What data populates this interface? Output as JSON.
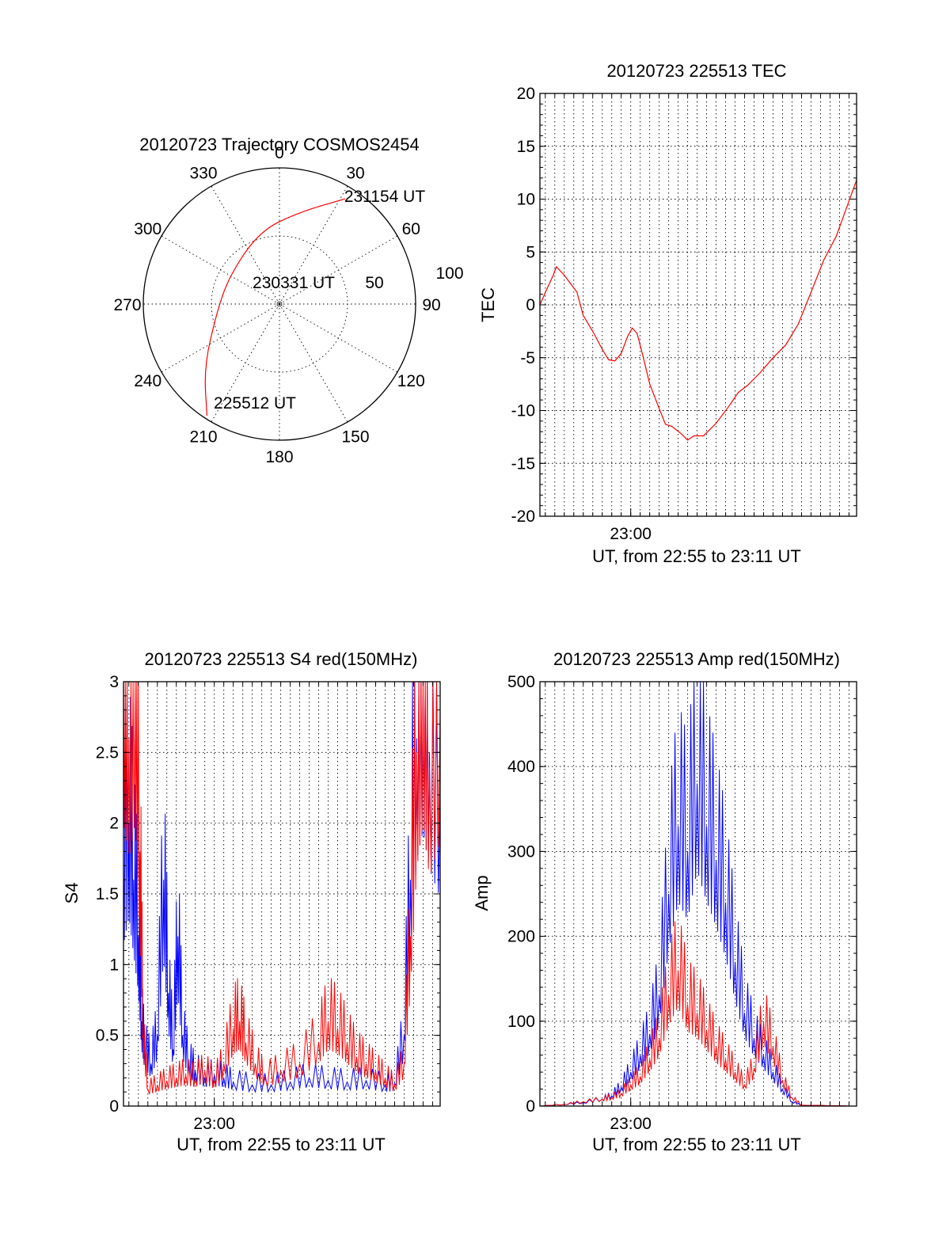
{
  "colors": {
    "red": "#ff0000",
    "blue": "#0000ff",
    "axis": "#000000"
  },
  "chart_data": [
    {
      "id": "trajectory",
      "type": "polar",
      "title": "20120723 Trajectory COSMOS2454",
      "azimuth_labels": [
        "0",
        "30",
        "60",
        "90",
        "120",
        "150",
        "180",
        "210",
        "240",
        "270",
        "300",
        "330"
      ],
      "elevation_ring_labels": [
        "50",
        "100"
      ],
      "annotations": {
        "start": "225512 UT",
        "middle": "230331 UT",
        "end": "231154 UT"
      },
      "trajectory": [
        {
          "az": 213,
          "zenith": 88
        },
        {
          "az": 230,
          "zenith": 65
        },
        {
          "az": 262,
          "zenith": 42
        },
        {
          "az": 300,
          "zenith": 38
        },
        {
          "az": 345,
          "zenith": 50
        },
        {
          "az": 12,
          "zenith": 62
        },
        {
          "az": 32,
          "zenith": 82
        }
      ]
    },
    {
      "id": "tec",
      "type": "line",
      "title": "20120723 225513 TEC",
      "xlabel": "UT, from 22:55 to 23:11 UT",
      "ylabel": "TEC",
      "x_tick_label": "23:00",
      "xlim": [
        "22:55:13",
        "23:11:54"
      ],
      "ylim": [
        -20,
        20
      ],
      "yticks": [
        "20",
        "15",
        "10",
        "5",
        "0",
        "-5",
        "-10",
        "-15",
        "-20"
      ],
      "series": [
        {
          "color": "red",
          "points": [
            [
              "22:55:13",
              0
            ],
            [
              "22:55:35",
              1.5
            ],
            [
              "22:55:55",
              2.8
            ],
            [
              "22:56:05",
              3.6
            ],
            [
              "22:56:30",
              2.8
            ],
            [
              "22:57:10",
              1.2
            ],
            [
              "22:57:30",
              -1
            ],
            [
              "22:58:00",
              -2.5
            ],
            [
              "22:58:30",
              -4.2
            ],
            [
              "22:58:50",
              -5.2
            ],
            [
              "22:59:10",
              -5.3
            ],
            [
              "22:59:30",
              -4.6
            ],
            [
              "22:59:50",
              -3
            ],
            [
              "23:00:05",
              -2.2
            ],
            [
              "23:00:20",
              -2.7
            ],
            [
              "23:00:40",
              -5
            ],
            [
              "23:01:00",
              -7.5
            ],
            [
              "23:01:30",
              -9.8
            ],
            [
              "23:01:50",
              -11.3
            ],
            [
              "23:02:10",
              -11.5
            ],
            [
              "23:02:40",
              -12.2
            ],
            [
              "23:03:00",
              -12.8
            ],
            [
              "23:03:20",
              -12.4
            ],
            [
              "23:03:50",
              -12.4
            ],
            [
              "23:04:30",
              -11.2
            ],
            [
              "23:05:10",
              -9.6
            ],
            [
              "23:05:40",
              -8.3
            ],
            [
              "23:06:10",
              -7.6
            ],
            [
              "23:06:50",
              -6.4
            ],
            [
              "23:07:30",
              -5
            ],
            [
              "23:08:10",
              -3.8
            ],
            [
              "23:08:50",
              -1.8
            ],
            [
              "23:09:30",
              1.2
            ],
            [
              "23:10:10",
              4.2
            ],
            [
              "23:10:50",
              6.5
            ],
            [
              "23:11:20",
              9
            ],
            [
              "23:11:54",
              11.8
            ]
          ]
        }
      ]
    },
    {
      "id": "s4",
      "type": "line",
      "title": "20120723 225513 S4 red(150MHz)",
      "xlabel": "UT, from 22:55 to 23:11 UT",
      "ylabel": "S4",
      "x_tick_label": "23:00",
      "xlim": [
        "22:55:13",
        "23:11:54"
      ],
      "ylim": [
        0,
        3
      ],
      "yticks": [
        "3",
        "2.5",
        "2",
        "1.5",
        "1",
        "0.5",
        "0"
      ],
      "series": [
        {
          "color": "blue",
          "points": [
            [
              "22:55:13",
              1.7
            ],
            [
              "22:55:30",
              2.0
            ],
            [
              "22:55:45",
              1.6
            ],
            [
              "22:56:00",
              1.2
            ],
            [
              "22:56:10",
              0.6
            ],
            [
              "22:56:20",
              0.4
            ],
            [
              "22:56:40",
              0.3
            ],
            [
              "22:57:00",
              0.5
            ],
            [
              "22:57:20",
              1.6
            ],
            [
              "22:57:35",
              0.8
            ],
            [
              "22:57:50",
              0.4
            ],
            [
              "22:58:05",
              1.2
            ],
            [
              "22:58:20",
              0.5
            ],
            [
              "22:58:40",
              0.3
            ],
            [
              "22:59:00",
              0.25
            ],
            [
              "22:59:30",
              0.2
            ],
            [
              "23:00:00",
              0.22
            ],
            [
              "23:00:30",
              0.2
            ],
            [
              "23:01:00",
              0.17
            ],
            [
              "23:02:00",
              0.15
            ],
            [
              "23:03:00",
              0.15
            ],
            [
              "23:04:00",
              0.17
            ],
            [
              "23:05:00",
              0.2
            ],
            [
              "23:06:00",
              0.18
            ],
            [
              "23:07:00",
              0.17
            ],
            [
              "23:08:00",
              0.18
            ],
            [
              "23:09:00",
              0.15
            ],
            [
              "23:09:30",
              0.16
            ],
            [
              "23:10:00",
              0.5
            ],
            [
              "23:10:20",
              1.6
            ],
            [
              "23:10:40",
              2.6
            ],
            [
              "23:11:00",
              2.9
            ],
            [
              "23:11:20",
              2.5
            ],
            [
              "23:11:54",
              2.2
            ]
          ]
        },
        {
          "color": "red",
          "points": [
            [
              "22:55:13",
              3.0
            ],
            [
              "22:55:30",
              2.6
            ],
            [
              "22:55:50",
              3.0
            ],
            [
              "22:56:05",
              1.8
            ],
            [
              "22:56:15",
              0.5
            ],
            [
              "22:56:30",
              0.12
            ],
            [
              "22:57:00",
              0.15
            ],
            [
              "22:57:30",
              0.18
            ],
            [
              "22:58:00",
              0.2
            ],
            [
              "22:58:30",
              0.22
            ],
            [
              "22:59:00",
              0.2
            ],
            [
              "22:59:30",
              0.25
            ],
            [
              "23:00:00",
              0.18
            ],
            [
              "23:00:30",
              0.3
            ],
            [
              "23:01:00",
              0.55
            ],
            [
              "23:01:20",
              0.6
            ],
            [
              "23:01:40",
              0.45
            ],
            [
              "23:02:10",
              0.3
            ],
            [
              "23:02:40",
              0.2
            ],
            [
              "23:03:30",
              0.25
            ],
            [
              "23:04:30",
              0.3
            ],
            [
              "23:05:30",
              0.45
            ],
            [
              "23:06:00",
              0.6
            ],
            [
              "23:06:30",
              0.55
            ],
            [
              "23:07:00",
              0.45
            ],
            [
              "23:07:30",
              0.35
            ],
            [
              "23:08:00",
              0.3
            ],
            [
              "23:08:30",
              0.25
            ],
            [
              "23:09:00",
              0.2
            ],
            [
              "23:09:30",
              0.15
            ],
            [
              "23:10:00",
              0.3
            ],
            [
              "23:10:20",
              1.2
            ],
            [
              "23:10:40",
              2.5
            ],
            [
              "23:11:00",
              3.0
            ],
            [
              "23:11:20",
              2.4
            ],
            [
              "23:11:54",
              2.8
            ]
          ]
        }
      ]
    },
    {
      "id": "amp",
      "type": "line",
      "title": "20120723 225513 Amp red(150MHz)",
      "xlabel": "UT, from 22:55 to 23:11 UT",
      "ylabel": "Amp",
      "x_tick_label": "23:00",
      "xlim": [
        "22:55:13",
        "23:11:54"
      ],
      "ylim": [
        0,
        500
      ],
      "yticks": [
        "500",
        "400",
        "300",
        "200",
        "100",
        "0"
      ],
      "series": [
        {
          "color": "blue",
          "points": [
            [
              "22:55:13",
              0
            ],
            [
              "22:56:30",
              2
            ],
            [
              "22:57:30",
              4
            ],
            [
              "22:58:30",
              8
            ],
            [
              "22:59:00",
              12
            ],
            [
              "22:59:30",
              22
            ],
            [
              "23:00:00",
              40
            ],
            [
              "23:00:30",
              60
            ],
            [
              "23:01:00",
              85
            ],
            [
              "23:01:30",
              130
            ],
            [
              "23:02:00",
              250
            ],
            [
              "23:02:30",
              330
            ],
            [
              "23:03:00",
              300
            ],
            [
              "23:03:30",
              380
            ],
            [
              "23:04:00",
              330
            ],
            [
              "23:04:30",
              290
            ],
            [
              "23:05:00",
              240
            ],
            [
              "23:05:30",
              170
            ],
            [
              "23:06:00",
              110
            ],
            [
              "23:06:30",
              80
            ],
            [
              "23:07:00",
              60
            ],
            [
              "23:07:30",
              40
            ],
            [
              "23:08:00",
              20
            ],
            [
              "23:08:30",
              5
            ],
            [
              "23:09:00",
              1
            ],
            [
              "23:11:54",
              0
            ]
          ]
        },
        {
          "color": "red",
          "points": [
            [
              "22:55:13",
              0
            ],
            [
              "22:56:30",
              2
            ],
            [
              "22:57:30",
              5
            ],
            [
              "22:58:30",
              8
            ],
            [
              "22:59:00",
              10
            ],
            [
              "22:59:30",
              15
            ],
            [
              "23:00:00",
              25
            ],
            [
              "23:00:30",
              35
            ],
            [
              "23:01:00",
              55
            ],
            [
              "23:01:30",
              80
            ],
            [
              "23:02:00",
              130
            ],
            [
              "23:02:30",
              160
            ],
            [
              "23:03:00",
              120
            ],
            [
              "23:03:30",
              110
            ],
            [
              "23:04:00",
              90
            ],
            [
              "23:04:30",
              70
            ],
            [
              "23:05:00",
              55
            ],
            [
              "23:05:30",
              40
            ],
            [
              "23:06:00",
              25
            ],
            [
              "23:06:30",
              45
            ],
            [
              "23:07:00",
              100
            ],
            [
              "23:07:30",
              70
            ],
            [
              "23:08:00",
              30
            ],
            [
              "23:08:30",
              10
            ],
            [
              "23:09:00",
              1
            ],
            [
              "23:11:54",
              0
            ]
          ]
        }
      ]
    }
  ]
}
